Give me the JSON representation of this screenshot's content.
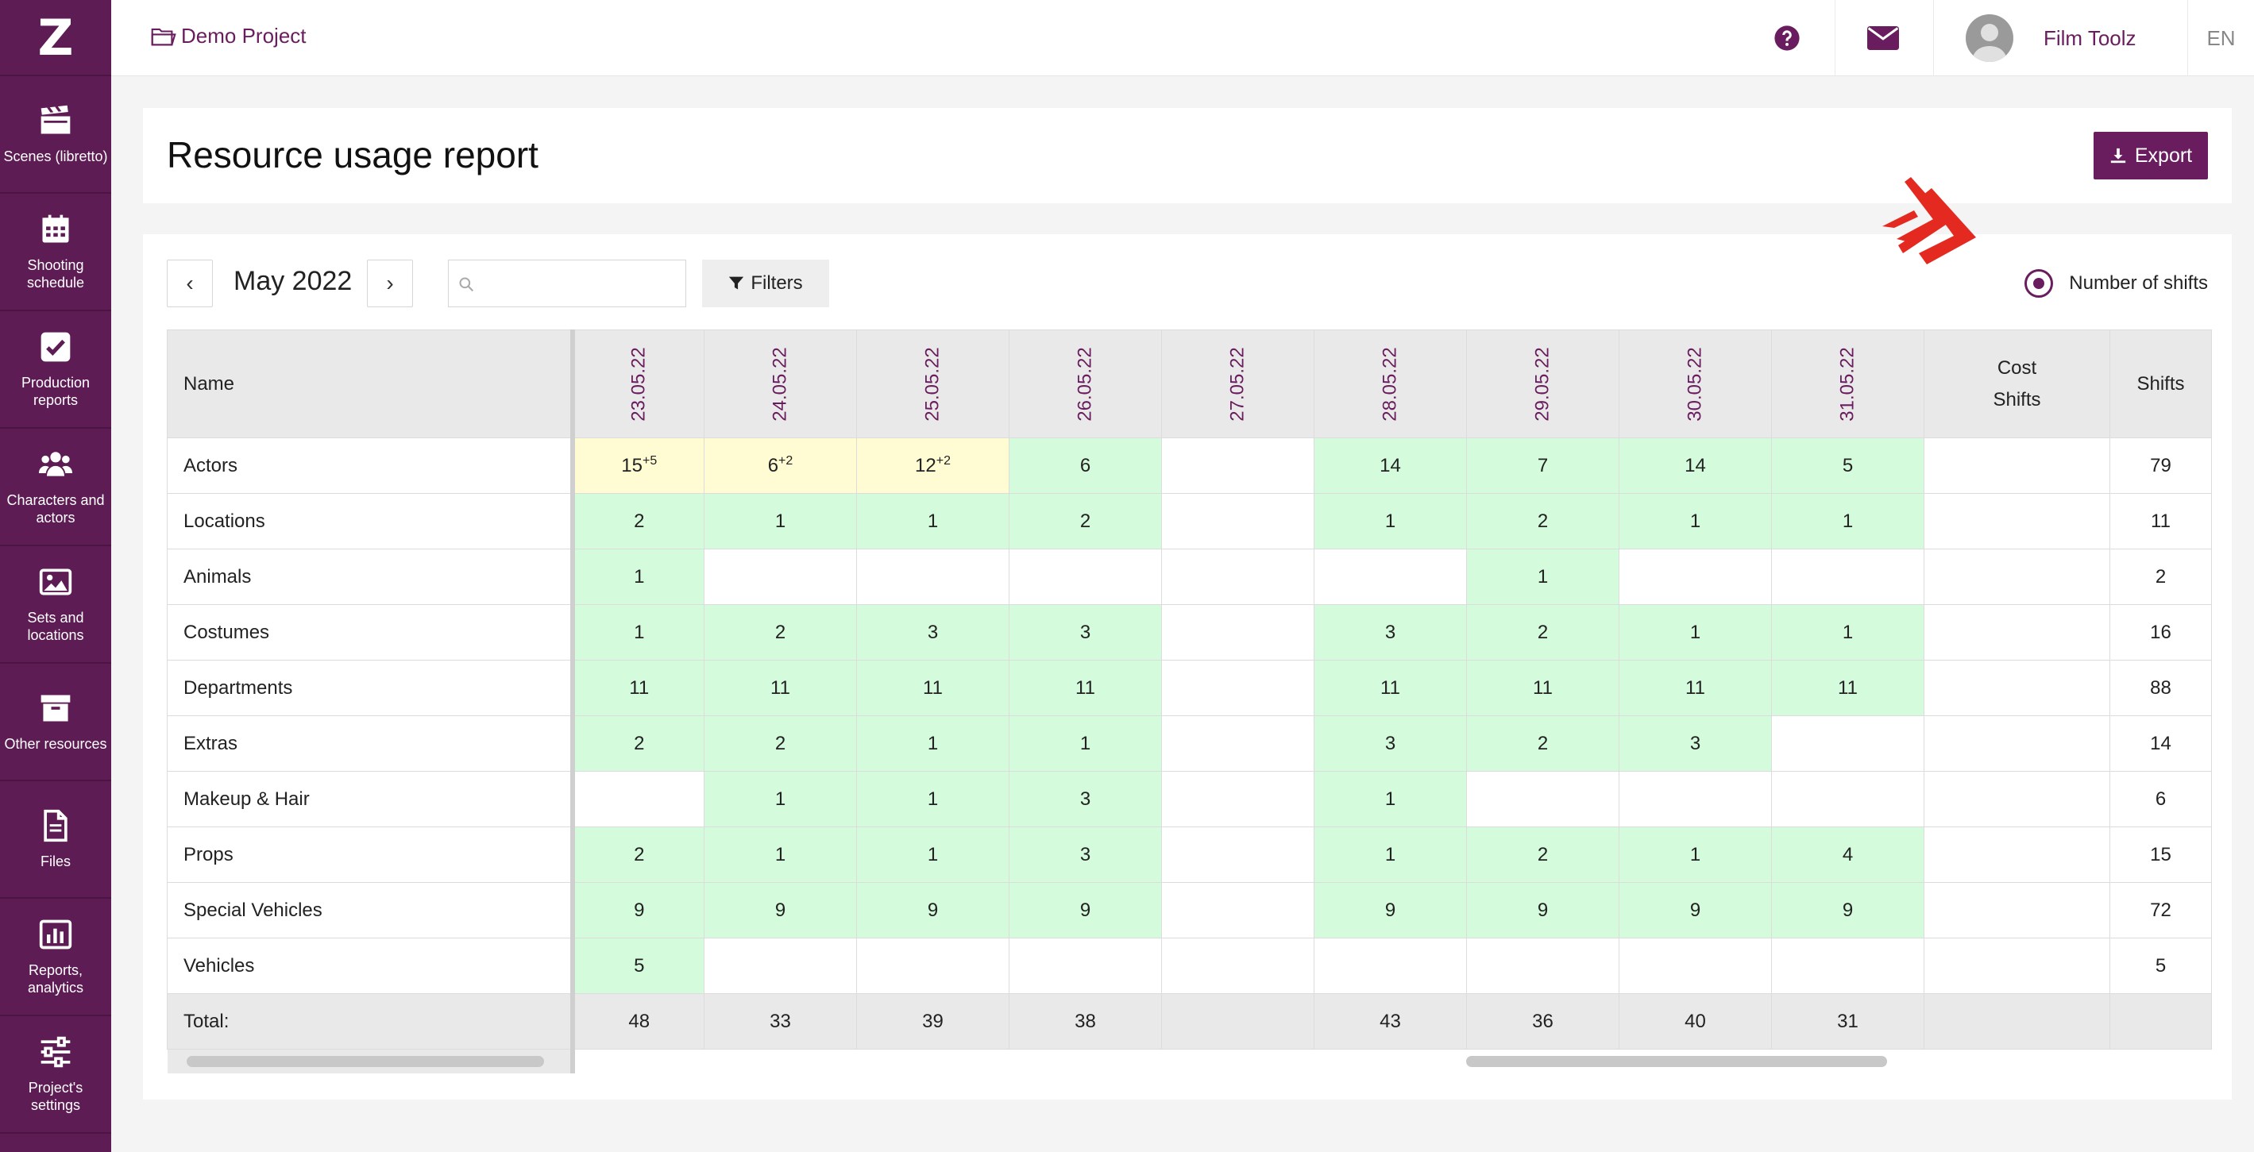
{
  "app": {
    "logo": "Z"
  },
  "sidebar": {
    "items": [
      {
        "label": "Scenes (libretto)",
        "icon": "clapperboard-icon"
      },
      {
        "label": "Shooting\nschedule",
        "icon": "calendar-icon"
      },
      {
        "label": "Production\nreports",
        "icon": "checkbox-icon"
      },
      {
        "label": "Characters and\nactors",
        "icon": "users-icon"
      },
      {
        "label": "Sets and\nlocations",
        "icon": "image-icon"
      },
      {
        "label": "Other resources",
        "icon": "archive-icon"
      },
      {
        "label": "Files",
        "icon": "file-icon"
      },
      {
        "label": "Reports,\nanalytics",
        "icon": "bar-chart-icon"
      },
      {
        "label": "Project's\nsettings",
        "icon": "sliders-icon"
      }
    ]
  },
  "topbar": {
    "project": "Demo Project",
    "user_name": "Film Toolz",
    "language": "EN",
    "help_icon": "help-icon",
    "mail_icon": "mail-icon"
  },
  "header": {
    "title": "Resource usage report",
    "export_label": "Export"
  },
  "toolbar": {
    "prev": "‹",
    "next": "›",
    "month": "May 2022",
    "search_placeholder": "",
    "filters_label": "Filters",
    "radio_label": "Number of shifts"
  },
  "table": {
    "name_header": "Name",
    "dates": [
      "23.05.22",
      "24.05.22",
      "25.05.22",
      "26.05.22",
      "27.05.22",
      "28.05.22",
      "29.05.22",
      "30.05.22",
      "31.05.22"
    ],
    "cost_header_1": "Cost",
    "cost_header_2": "Shifts",
    "shifts_header": "Shifts",
    "rows": [
      {
        "name": "Actors",
        "cells": [
          {
            "v": "15",
            "sup": "+5",
            "s": "y"
          },
          {
            "v": "6",
            "sup": "+2",
            "s": "y"
          },
          {
            "v": "12",
            "sup": "+2",
            "s": "y"
          },
          {
            "v": "6",
            "s": "g"
          },
          {
            "v": ""
          },
          {
            "v": "14",
            "s": "g"
          },
          {
            "v": "7",
            "s": "g"
          },
          {
            "v": "14",
            "s": "g"
          },
          {
            "v": "5",
            "s": "g"
          }
        ],
        "cost": "",
        "shifts": "79"
      },
      {
        "name": "Locations",
        "cells": [
          {
            "v": "2",
            "s": "g"
          },
          {
            "v": "1",
            "s": "g"
          },
          {
            "v": "1",
            "s": "g"
          },
          {
            "v": "2",
            "s": "g"
          },
          {
            "v": ""
          },
          {
            "v": "1",
            "s": "g"
          },
          {
            "v": "2",
            "s": "g"
          },
          {
            "v": "1",
            "s": "g"
          },
          {
            "v": "1",
            "s": "g"
          }
        ],
        "cost": "",
        "shifts": "11"
      },
      {
        "name": "Animals",
        "cells": [
          {
            "v": "1",
            "s": "g"
          },
          {
            "v": ""
          },
          {
            "v": ""
          },
          {
            "v": ""
          },
          {
            "v": ""
          },
          {
            "v": ""
          },
          {
            "v": "1",
            "s": "g"
          },
          {
            "v": ""
          },
          {
            "v": ""
          }
        ],
        "cost": "",
        "shifts": "2"
      },
      {
        "name": "Costumes",
        "cells": [
          {
            "v": "1",
            "s": "g"
          },
          {
            "v": "2",
            "s": "g"
          },
          {
            "v": "3",
            "s": "g"
          },
          {
            "v": "3",
            "s": "g"
          },
          {
            "v": ""
          },
          {
            "v": "3",
            "s": "g"
          },
          {
            "v": "2",
            "s": "g"
          },
          {
            "v": "1",
            "s": "g"
          },
          {
            "v": "1",
            "s": "g"
          }
        ],
        "cost": "",
        "shifts": "16"
      },
      {
        "name": "Departments",
        "cells": [
          {
            "v": "11",
            "s": "g"
          },
          {
            "v": "11",
            "s": "g"
          },
          {
            "v": "11",
            "s": "g"
          },
          {
            "v": "11",
            "s": "g"
          },
          {
            "v": ""
          },
          {
            "v": "11",
            "s": "g"
          },
          {
            "v": "11",
            "s": "g"
          },
          {
            "v": "11",
            "s": "g"
          },
          {
            "v": "11",
            "s": "g"
          }
        ],
        "cost": "",
        "shifts": "88"
      },
      {
        "name": "Extras",
        "cells": [
          {
            "v": "2",
            "s": "g"
          },
          {
            "v": "2",
            "s": "g"
          },
          {
            "v": "1",
            "s": "g"
          },
          {
            "v": "1",
            "s": "g"
          },
          {
            "v": ""
          },
          {
            "v": "3",
            "s": "g"
          },
          {
            "v": "2",
            "s": "g"
          },
          {
            "v": "3",
            "s": "g"
          },
          {
            "v": ""
          }
        ],
        "cost": "",
        "shifts": "14"
      },
      {
        "name": "Makeup & Hair",
        "cells": [
          {
            "v": ""
          },
          {
            "v": "1",
            "s": "g"
          },
          {
            "v": "1",
            "s": "g"
          },
          {
            "v": "3",
            "s": "g"
          },
          {
            "v": ""
          },
          {
            "v": "1",
            "s": "g"
          },
          {
            "v": ""
          },
          {
            "v": ""
          },
          {
            "v": ""
          }
        ],
        "cost": "",
        "shifts": "6"
      },
      {
        "name": "Props",
        "cells": [
          {
            "v": "2",
            "s": "g"
          },
          {
            "v": "1",
            "s": "g"
          },
          {
            "v": "1",
            "s": "g"
          },
          {
            "v": "3",
            "s": "g"
          },
          {
            "v": ""
          },
          {
            "v": "1",
            "s": "g"
          },
          {
            "v": "2",
            "s": "g"
          },
          {
            "v": "1",
            "s": "g"
          },
          {
            "v": "4",
            "s": "g"
          }
        ],
        "cost": "",
        "shifts": "15"
      },
      {
        "name": "Special Vehicles",
        "cells": [
          {
            "v": "9",
            "s": "g"
          },
          {
            "v": "9",
            "s": "g"
          },
          {
            "v": "9",
            "s": "g"
          },
          {
            "v": "9",
            "s": "g"
          },
          {
            "v": ""
          },
          {
            "v": "9",
            "s": "g"
          },
          {
            "v": "9",
            "s": "g"
          },
          {
            "v": "9",
            "s": "g"
          },
          {
            "v": "9",
            "s": "g"
          }
        ],
        "cost": "",
        "shifts": "72"
      },
      {
        "name": "Vehicles",
        "cells": [
          {
            "v": "5",
            "s": "g"
          },
          {
            "v": ""
          },
          {
            "v": ""
          },
          {
            "v": ""
          },
          {
            "v": ""
          },
          {
            "v": ""
          },
          {
            "v": ""
          },
          {
            "v": ""
          },
          {
            "v": ""
          }
        ],
        "cost": "",
        "shifts": "5"
      }
    ],
    "total": {
      "label": "Total:",
      "values": [
        "48",
        "33",
        "39",
        "38",
        "",
        "43",
        "36",
        "40",
        "31"
      ],
      "cost": "",
      "shifts": ""
    }
  },
  "colors": {
    "brand": "#5e1c54",
    "accent": "#6a1d5e",
    "cell_green": "#d5fbdd",
    "cell_yellow": "#fffbd2"
  }
}
